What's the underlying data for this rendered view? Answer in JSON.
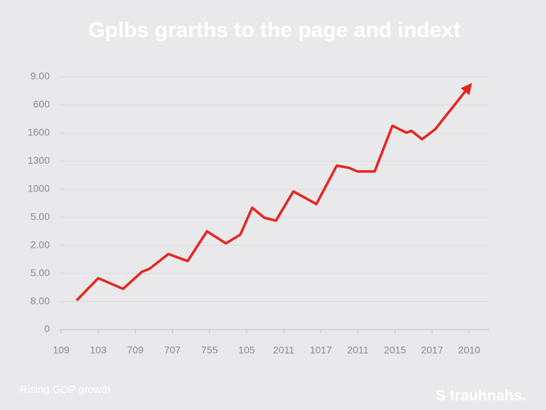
{
  "chart_data": {
    "type": "line",
    "title": "Gplbs grarths to the page and indext",
    "caption": "Rising GDP growth",
    "brand": "S trauhnahs.",
    "xlim": [
      0,
      11
    ],
    "xticks": [
      {
        "value": 0,
        "label": "109"
      },
      {
        "value": 1,
        "label": "103"
      },
      {
        "value": 2,
        "label": "709"
      },
      {
        "value": 3,
        "label": "707"
      },
      {
        "value": 4,
        "label": "755"
      },
      {
        "value": 5,
        "label": "105"
      },
      {
        "value": 6,
        "label": "2011"
      },
      {
        "value": 7,
        "label": "1017"
      },
      {
        "value": 8,
        "label": "2011"
      },
      {
        "value": 9,
        "label": "2015"
      },
      {
        "value": 10,
        "label": "2017"
      },
      {
        "value": 11,
        "label": "2010"
      }
    ],
    "ylim": [
      0,
      9
    ],
    "yticks": [
      0,
      {
        "value": 1,
        "label": "8.00"
      },
      {
        "value": 2,
        "label": "5.00"
      },
      {
        "value": 3,
        "label": "2.00"
      },
      {
        "value": 4,
        "label": "5.00"
      },
      {
        "value": 5,
        "label": "1000"
      },
      {
        "value": 6,
        "label": "1300"
      },
      {
        "value": 7,
        "label": "1600"
      },
      {
        "value": 8,
        "label": "600"
      },
      {
        "value": 9,
        "label": "9.00"
      }
    ],
    "grid": true,
    "series": [
      {
        "color": "#e8231f",
        "x": [
          0.42,
          1.0,
          1.67,
          2.18,
          2.38,
          2.89,
          3.41,
          3.93,
          4.44,
          4.83,
          5.15,
          5.48,
          5.79,
          6.26,
          6.88,
          7.43,
          7.76,
          7.99,
          8.45,
          8.93,
          9.31,
          9.44,
          9.73,
          10.08,
          11.0
        ],
        "values": [
          1.04,
          1.83,
          1.45,
          2.06,
          2.16,
          2.69,
          2.44,
          3.5,
          3.07,
          3.38,
          4.34,
          3.98,
          3.88,
          4.92,
          4.47,
          5.84,
          5.76,
          5.63,
          5.63,
          7.26,
          7.01,
          7.08,
          6.78,
          7.13,
          8.66
        ]
      }
    ]
  }
}
